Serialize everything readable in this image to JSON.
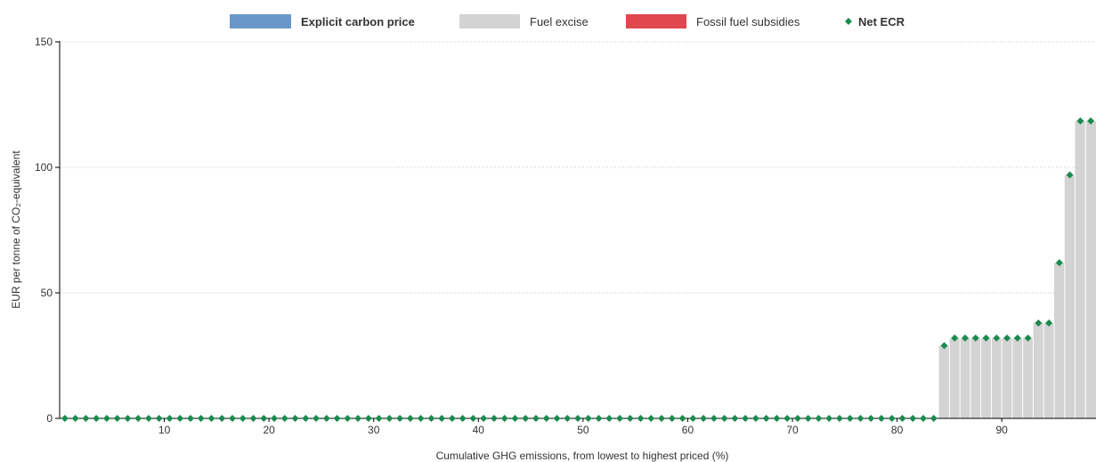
{
  "chart_data": {
    "type": "bar",
    "title": "",
    "xlabel": "Cumulative GHG emissions, from lowest to highest priced (%)",
    "ylabel": "EUR per tonne of CO₂-equivalent",
    "xlim": [
      0,
      99
    ],
    "ylim": [
      0,
      150
    ],
    "x_ticks": [
      10,
      20,
      30,
      40,
      50,
      60,
      70,
      80,
      90
    ],
    "y_ticks": [
      0,
      50,
      100,
      150
    ],
    "grid": "horizontal dotted",
    "legend_position": "top",
    "legend": [
      {
        "name": "Explicit carbon price",
        "kind": "bar",
        "color": "#6a97c9",
        "bold": true
      },
      {
        "name": "Fuel excise",
        "kind": "bar",
        "color": "#d3d3d3",
        "bold": false
      },
      {
        "name": "Fossil fuel subsidies",
        "kind": "bar",
        "color": "#e0474f",
        "bold": false
      },
      {
        "name": "Net ECR",
        "kind": "marker",
        "color": "#1a8a4e",
        "bold": true
      }
    ],
    "series": [
      {
        "name": "Fuel excise",
        "type": "step-bar",
        "segments": [
          {
            "x_start": 84,
            "x_end": 85,
            "value": 29
          },
          {
            "x_start": 85,
            "x_end": 93,
            "value": 32
          },
          {
            "x_start": 93,
            "x_end": 95,
            "value": 38
          },
          {
            "x_start": 95,
            "x_end": 96,
            "value": 62
          },
          {
            "x_start": 96,
            "x_end": 97,
            "value": 97
          },
          {
            "x_start": 97,
            "x_end": 99,
            "value": 118.5
          }
        ]
      },
      {
        "name": "Net ECR",
        "type": "marker",
        "points": [
          [
            0,
            0
          ],
          [
            1,
            0
          ],
          [
            2,
            0
          ],
          [
            3,
            0
          ],
          [
            4,
            0
          ],
          [
            5,
            0
          ],
          [
            6,
            0
          ],
          [
            7,
            0
          ],
          [
            8,
            0
          ],
          [
            9,
            0
          ],
          [
            10,
            0
          ],
          [
            11,
            0
          ],
          [
            12,
            0
          ],
          [
            13,
            0
          ],
          [
            14,
            0
          ],
          [
            15,
            0
          ],
          [
            16,
            0
          ],
          [
            17,
            0
          ],
          [
            18,
            0
          ],
          [
            19,
            0
          ],
          [
            20,
            0
          ],
          [
            21,
            0
          ],
          [
            22,
            0
          ],
          [
            23,
            0
          ],
          [
            24,
            0
          ],
          [
            25,
            0
          ],
          [
            26,
            0
          ],
          [
            27,
            0
          ],
          [
            28,
            0
          ],
          [
            29,
            0
          ],
          [
            30,
            0
          ],
          [
            31,
            0
          ],
          [
            32,
            0
          ],
          [
            33,
            0
          ],
          [
            34,
            0
          ],
          [
            35,
            0
          ],
          [
            36,
            0
          ],
          [
            37,
            0
          ],
          [
            38,
            0
          ],
          [
            39,
            0
          ],
          [
            40,
            0
          ],
          [
            41,
            0
          ],
          [
            42,
            0
          ],
          [
            43,
            0
          ],
          [
            44,
            0
          ],
          [
            45,
            0
          ],
          [
            46,
            0
          ],
          [
            47,
            0
          ],
          [
            48,
            0
          ],
          [
            49,
            0
          ],
          [
            50,
            0
          ],
          [
            51,
            0
          ],
          [
            52,
            0
          ],
          [
            53,
            0
          ],
          [
            54,
            0
          ],
          [
            55,
            0
          ],
          [
            56,
            0
          ],
          [
            57,
            0
          ],
          [
            58,
            0
          ],
          [
            59,
            0
          ],
          [
            60,
            0
          ],
          [
            61,
            0
          ],
          [
            62,
            0
          ],
          [
            63,
            0
          ],
          [
            64,
            0
          ],
          [
            65,
            0
          ],
          [
            66,
            0
          ],
          [
            67,
            0
          ],
          [
            68,
            0
          ],
          [
            69,
            0
          ],
          [
            70,
            0
          ],
          [
            71,
            0
          ],
          [
            72,
            0
          ],
          [
            73,
            0
          ],
          [
            74,
            0
          ],
          [
            75,
            0
          ],
          [
            76,
            0
          ],
          [
            77,
            0
          ],
          [
            78,
            0
          ],
          [
            79,
            0
          ],
          [
            80,
            0
          ],
          [
            81,
            0
          ],
          [
            82,
            0
          ],
          [
            83,
            0
          ],
          [
            84,
            29
          ],
          [
            85,
            32
          ],
          [
            86,
            32
          ],
          [
            87,
            32
          ],
          [
            88,
            32
          ],
          [
            89,
            32
          ],
          [
            90,
            32
          ],
          [
            91,
            32
          ],
          [
            92,
            32
          ],
          [
            93,
            38
          ],
          [
            94,
            38
          ],
          [
            95,
            62
          ],
          [
            96,
            97
          ],
          [
            97,
            118.5
          ],
          [
            98,
            118.5
          ]
        ]
      }
    ]
  }
}
